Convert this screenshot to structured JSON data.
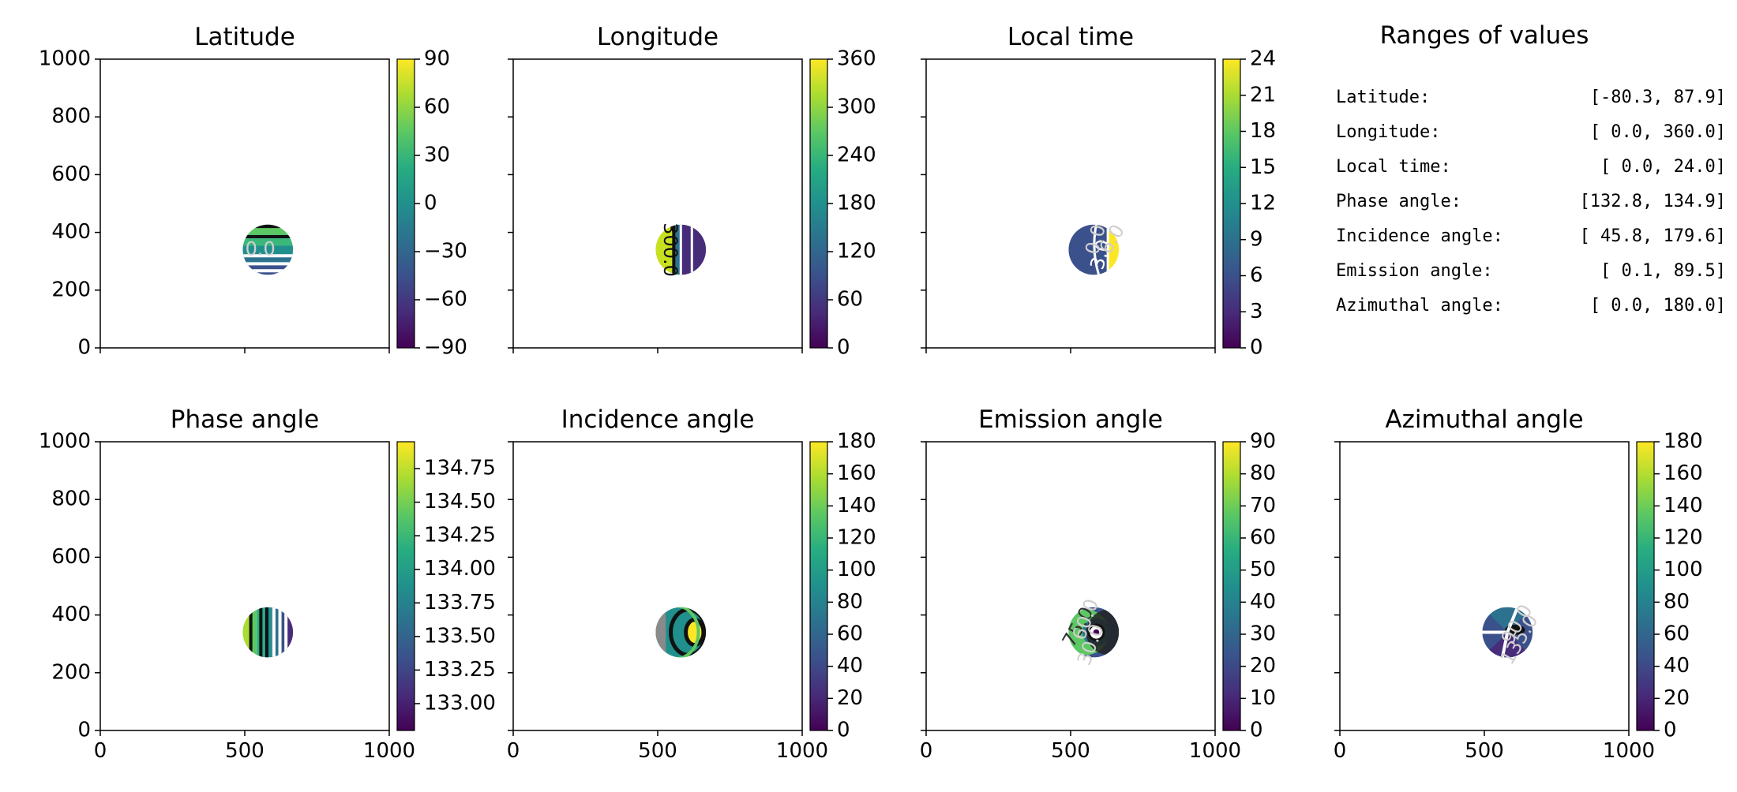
{
  "chart_data": [
    {
      "type": "heatmap",
      "title": "Latitude",
      "xlim": [
        0,
        1000
      ],
      "ylim": [
        0,
        1000
      ],
      "xticks": [
        "0",
        "500",
        "1000"
      ],
      "yticks": [
        "0",
        "200",
        "400",
        "600",
        "800",
        "1000"
      ],
      "colorbar": {
        "min": -90,
        "max": 90,
        "ticks": [
          "−90",
          "−60",
          "−30",
          "0",
          "30",
          "60",
          "90"
        ]
      },
      "disk_center": [
        580,
        340
      ],
      "disk_radius": 87,
      "contour_labels": [
        "0.0"
      ]
    },
    {
      "type": "heatmap",
      "title": "Longitude",
      "xlim": [
        0,
        1000
      ],
      "ylim": [
        0,
        1000
      ],
      "xticks": [
        "0",
        "500",
        "1000"
      ],
      "yticks": [
        "0",
        "200",
        "400",
        "600",
        "800",
        "1000"
      ],
      "colorbar": {
        "min": 0,
        "max": 360,
        "ticks": [
          "0",
          "60",
          "120",
          "180",
          "240",
          "300",
          "360"
        ]
      },
      "disk_center": [
        580,
        340
      ],
      "disk_radius": 87,
      "contour_labels": [
        "300.0"
      ]
    },
    {
      "type": "heatmap",
      "title": "Local time",
      "xlim": [
        0,
        1000
      ],
      "ylim": [
        0,
        1000
      ],
      "xticks": [
        "0",
        "500",
        "1000"
      ],
      "yticks": [
        "0",
        "200",
        "400",
        "600",
        "800",
        "1000"
      ],
      "colorbar": {
        "min": 0,
        "max": 24,
        "ticks": [
          "0",
          "3",
          "6",
          "9",
          "12",
          "15",
          "18",
          "21",
          "24"
        ]
      },
      "disk_center": [
        580,
        340
      ],
      "disk_radius": 87,
      "contour_labels": [
        "3.0",
        "0.0",
        "6.0"
      ]
    },
    {
      "type": "table",
      "title": "Ranges of values",
      "rows": [
        {
          "label": "Latitude:",
          "range": "[-80.3,  87.9]"
        },
        {
          "label": "Longitude:",
          "range": "[  0.0, 360.0]"
        },
        {
          "label": "Local time:",
          "range": "[  0.0,  24.0]"
        },
        {
          "label": "Phase angle:",
          "range": "[132.8, 134.9]"
        },
        {
          "label": "Incidence angle:",
          "range": "[ 45.8, 179.6]"
        },
        {
          "label": "Emission angle:",
          "range": "[  0.1,  89.5]"
        },
        {
          "label": "Azimuthal angle:",
          "range": "[  0.0, 180.0]"
        }
      ]
    },
    {
      "type": "heatmap",
      "title": "Phase angle",
      "xlim": [
        0,
        1000
      ],
      "ylim": [
        0,
        1000
      ],
      "xticks": [
        "0",
        "500",
        "1000"
      ],
      "yticks": [
        "0",
        "200",
        "400",
        "600",
        "800",
        "1000"
      ],
      "colorbar": {
        "min": 132.8,
        "max": 134.95,
        "ticks": [
          "133.00",
          "133.25",
          "133.50",
          "133.75",
          "134.00",
          "134.25",
          "134.50",
          "134.75"
        ]
      },
      "disk_center": [
        580,
        340
      ],
      "disk_radius": 87,
      "contour_labels": []
    },
    {
      "type": "heatmap",
      "title": "Incidence angle",
      "xlim": [
        0,
        1000
      ],
      "ylim": [
        0,
        1000
      ],
      "xticks": [
        "0",
        "500",
        "1000"
      ],
      "yticks": [
        "0",
        "200",
        "400",
        "600",
        "800",
        "1000"
      ],
      "colorbar": {
        "min": 0,
        "max": 180,
        "ticks": [
          "0",
          "20",
          "40",
          "60",
          "80",
          "100",
          "120",
          "140",
          "160",
          "180"
        ]
      },
      "disk_center": [
        580,
        340
      ],
      "disk_radius": 87,
      "contour_labels": []
    },
    {
      "type": "heatmap",
      "title": "Emission angle",
      "xlim": [
        0,
        1000
      ],
      "ylim": [
        0,
        1000
      ],
      "xticks": [
        "0",
        "500",
        "1000"
      ],
      "yticks": [
        "0",
        "200",
        "400",
        "600",
        "800",
        "1000"
      ],
      "colorbar": {
        "min": 0,
        "max": 90,
        "ticks": [
          "0",
          "10",
          "20",
          "30",
          "40",
          "50",
          "60",
          "70",
          "80",
          "90"
        ]
      },
      "disk_center": [
        580,
        340
      ],
      "disk_radius": 87,
      "contour_labels": [
        "75.0",
        "60.0",
        "30.0"
      ]
    },
    {
      "type": "heatmap",
      "title": "Azimuthal angle",
      "xlim": [
        0,
        1000
      ],
      "ylim": [
        0,
        1000
      ],
      "xticks": [
        "0",
        "500",
        "1000"
      ],
      "yticks": [
        "0",
        "200",
        "400",
        "600",
        "800",
        "1000"
      ],
      "colorbar": {
        "min": 0,
        "max": 180,
        "ticks": [
          "0",
          "20",
          "40",
          "60",
          "80",
          "100",
          "120",
          "140",
          "160",
          "180"
        ]
      },
      "disk_center": [
        580,
        340
      ],
      "disk_radius": 87,
      "contour_labels": [
        "90.0",
        "135.0"
      ]
    }
  ],
  "colors": {
    "viridis": [
      "#440154",
      "#472c7a",
      "#3b518b",
      "#2c718e",
      "#21908d",
      "#27ad81",
      "#5cc863",
      "#aadc32",
      "#fde725"
    ],
    "contour_dark": "#111111",
    "contour_light": "#ffffff",
    "label_light": "#cfcfcf"
  }
}
